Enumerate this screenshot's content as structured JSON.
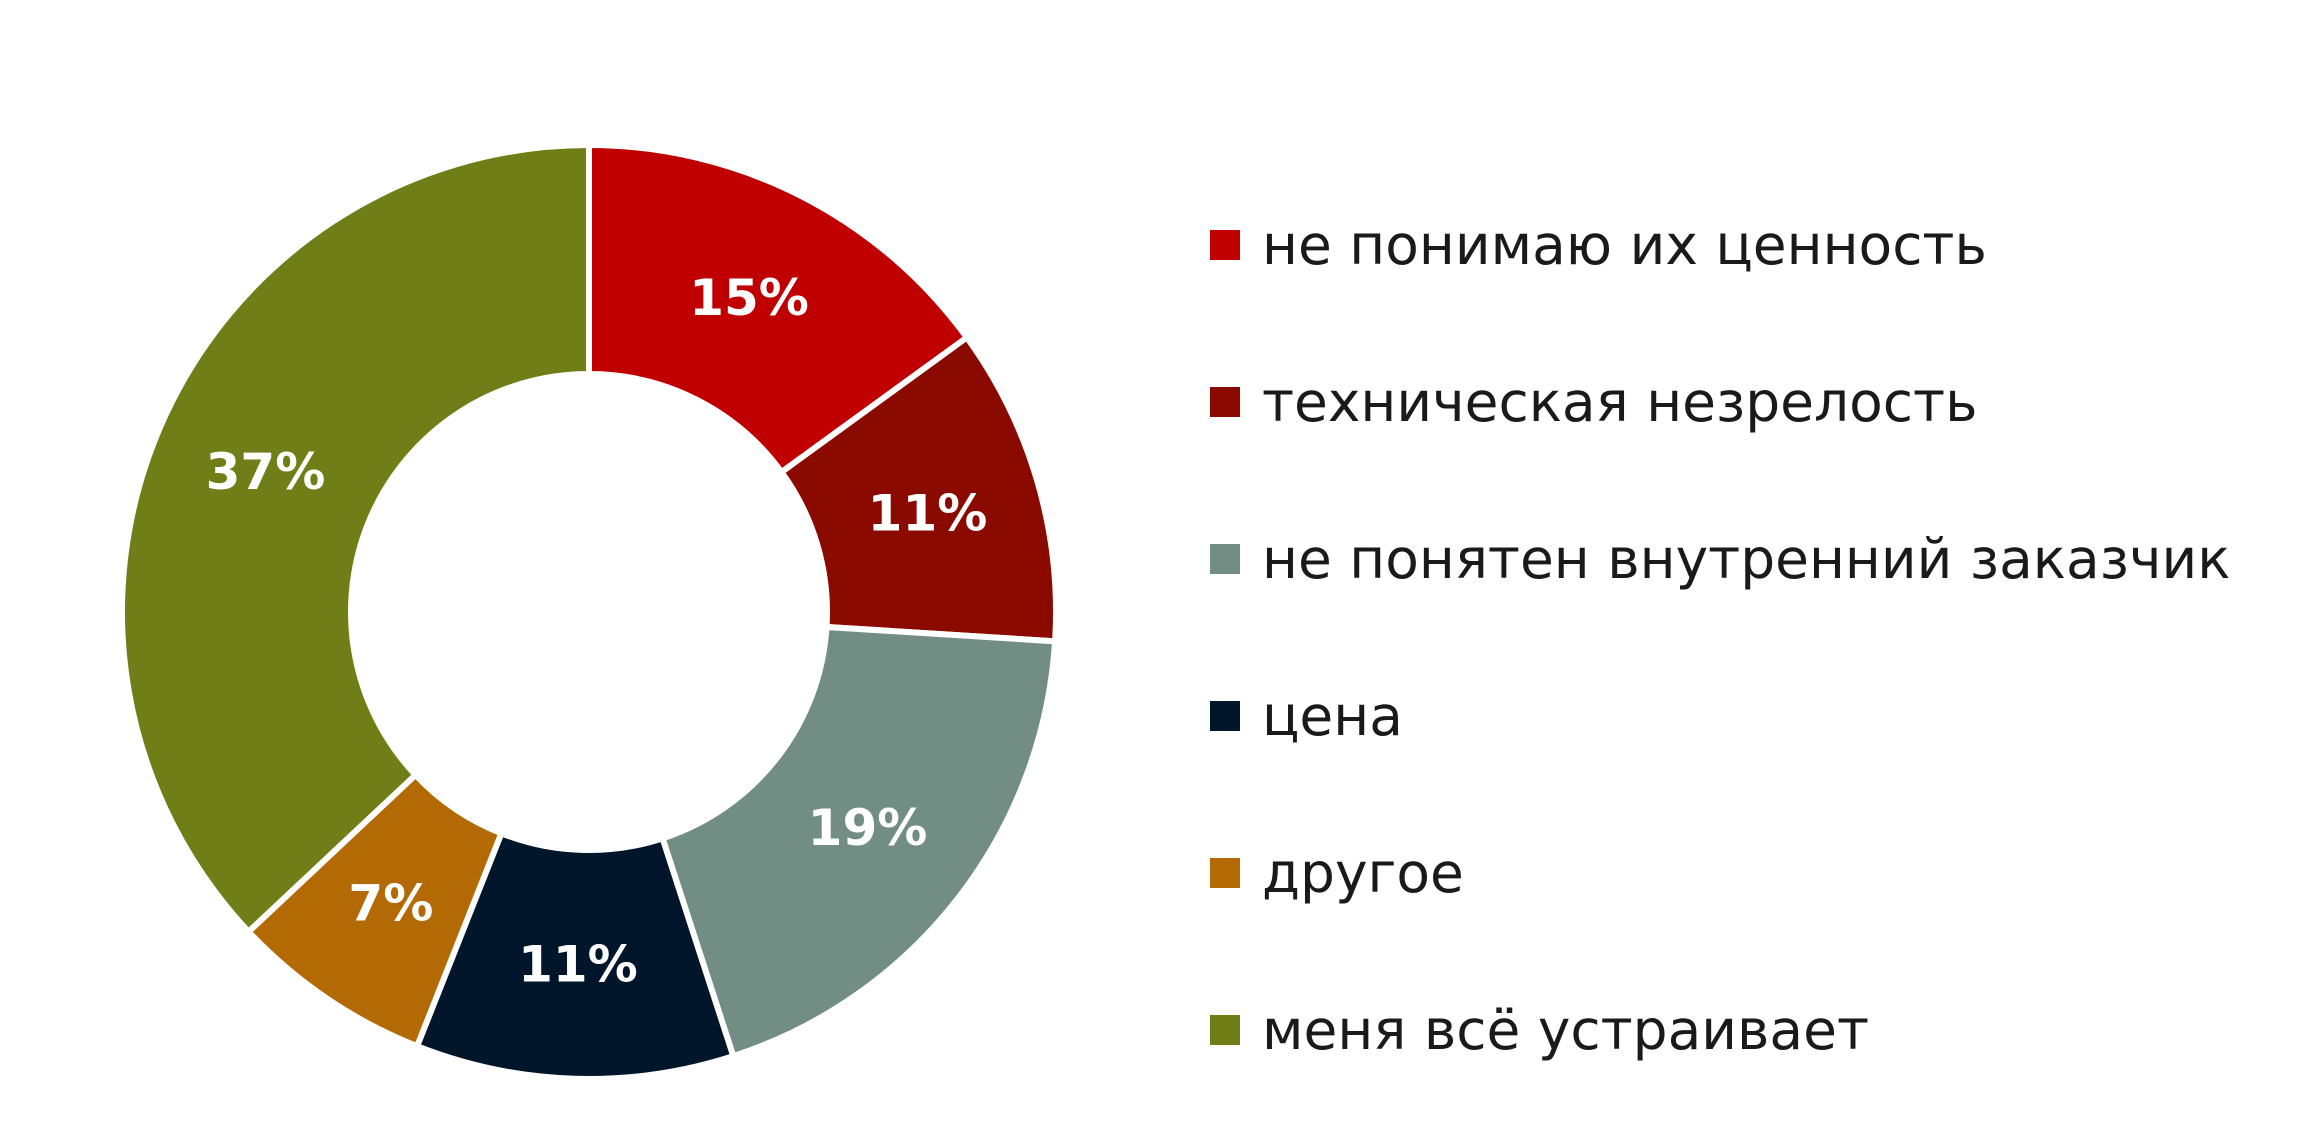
{
  "chart_data": {
    "type": "pie",
    "donut": true,
    "legend_position": "right",
    "categories": [
      "не понимаю их ценность",
      "техническая незрелость",
      "не понятен внутренний заказчик",
      "цена",
      "другое",
      "меня всё устраивает"
    ],
    "values": [
      15,
      11,
      19,
      11,
      7,
      37
    ],
    "labels": [
      "15%",
      "11%",
      "19%",
      "11%",
      "7%",
      "37%"
    ],
    "colors": [
      "#C00000",
      "#8B0A00",
      "#728E84",
      "#02162B",
      "#B36A04",
      "#6F7E17"
    ]
  }
}
